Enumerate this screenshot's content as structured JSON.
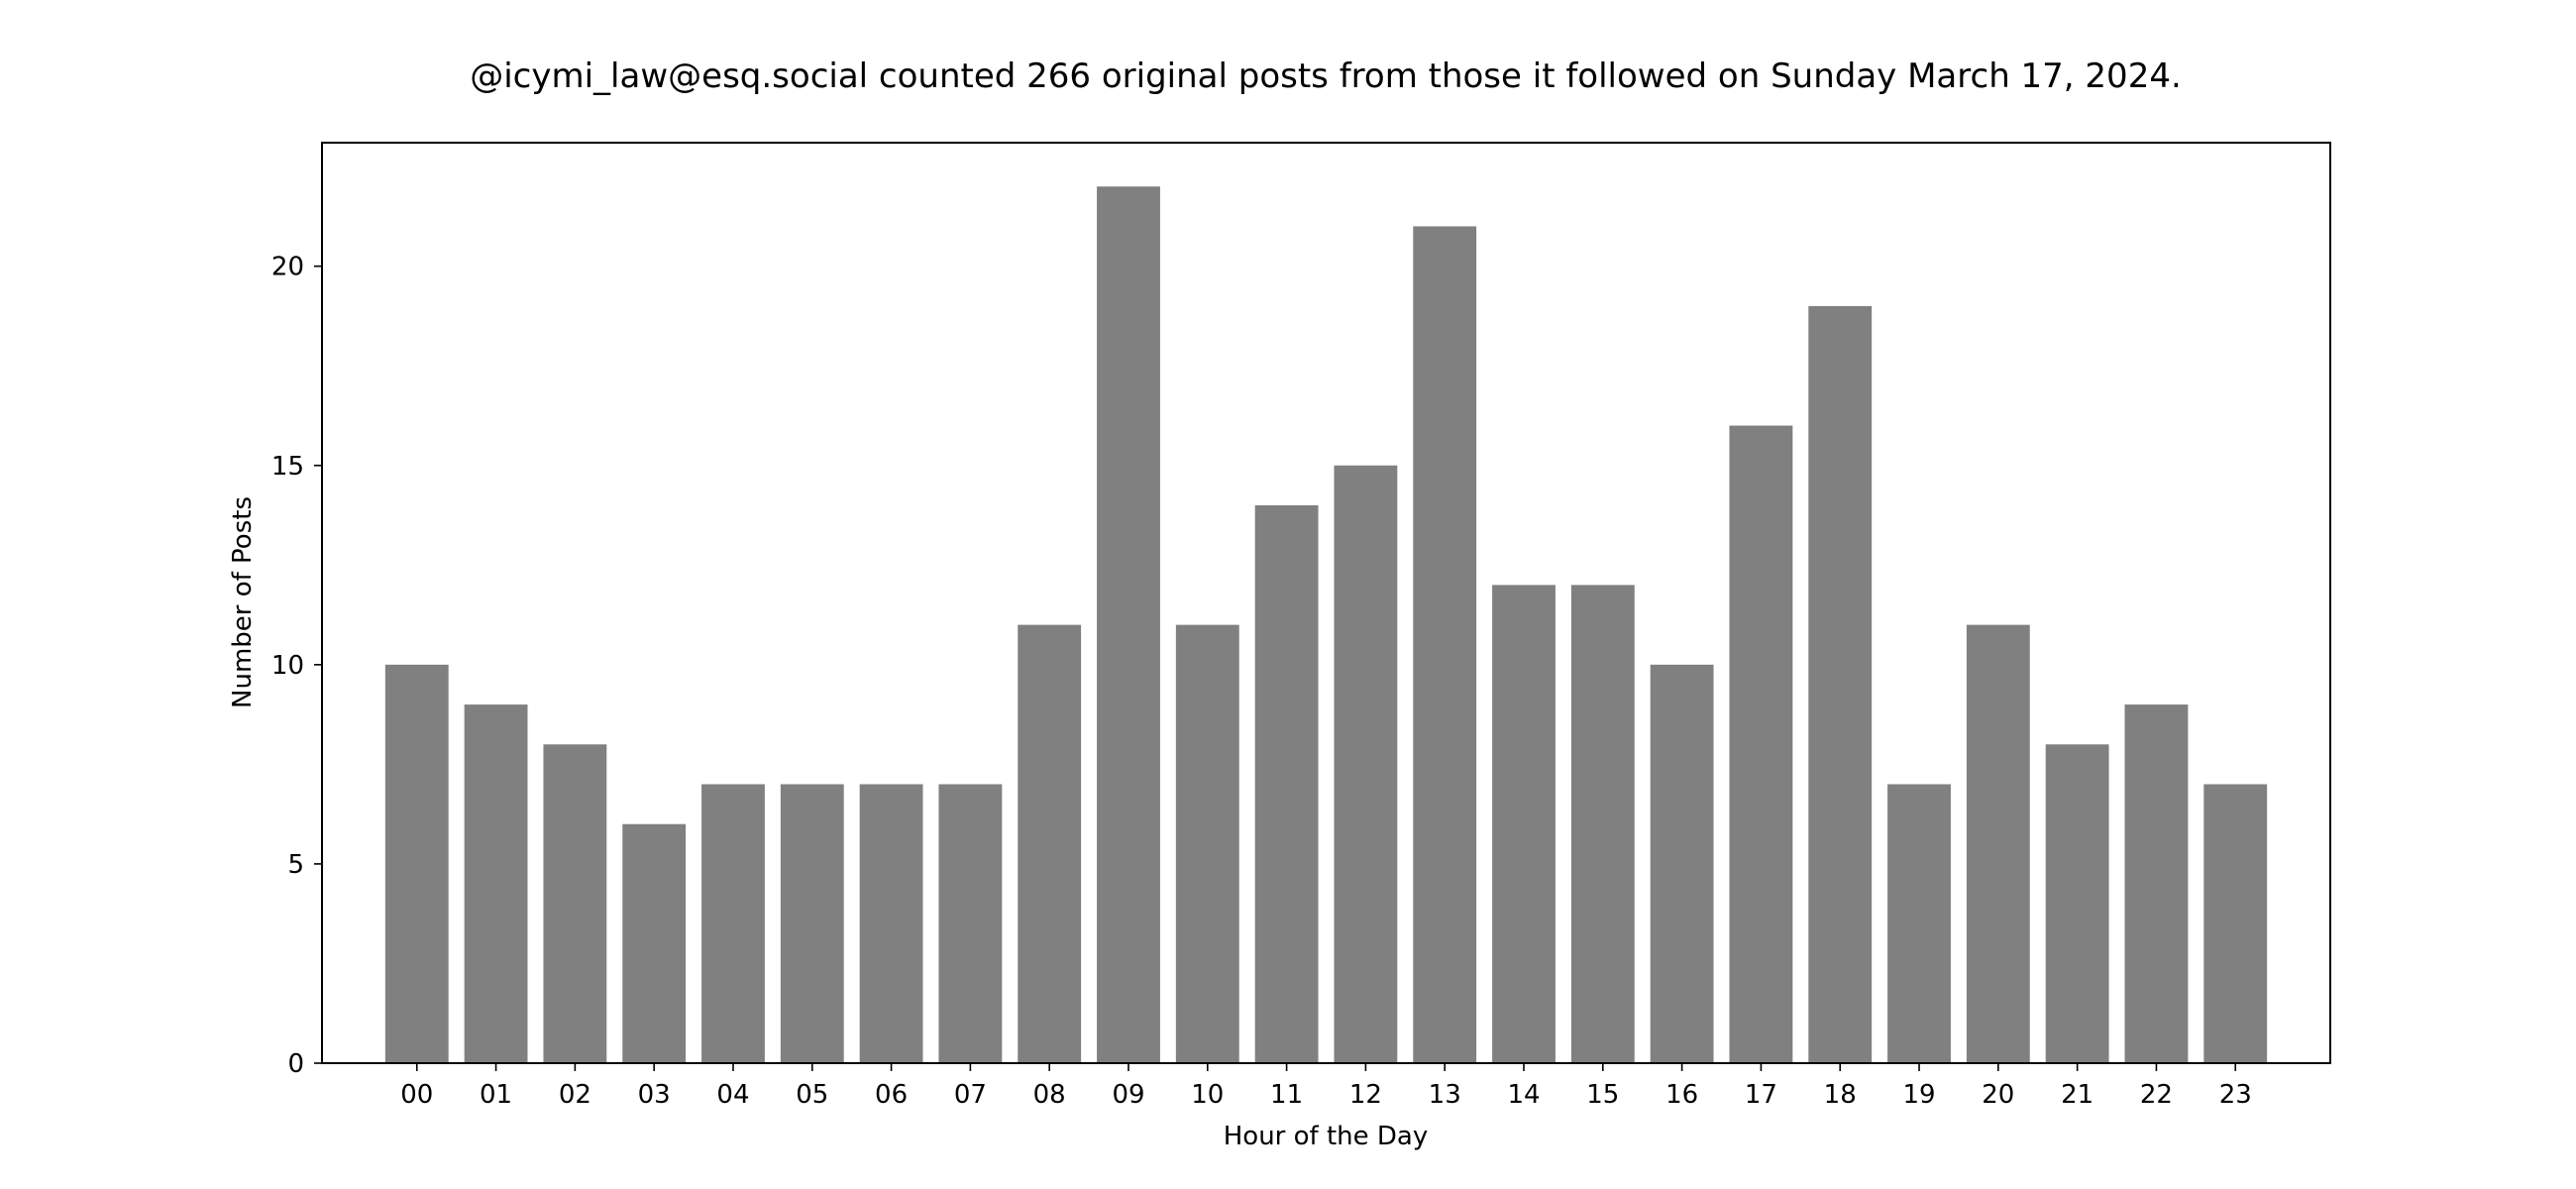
{
  "chart_data": {
    "type": "bar",
    "title": "@icymi_law@esq.social counted 266 original posts from those it followed on Sunday March 17, 2024.",
    "xlabel": "Hour of the Day",
    "ylabel": "Number of Posts",
    "categories": [
      "00",
      "01",
      "02",
      "03",
      "04",
      "05",
      "06",
      "07",
      "08",
      "09",
      "10",
      "11",
      "12",
      "13",
      "14",
      "15",
      "16",
      "17",
      "18",
      "19",
      "20",
      "21",
      "22",
      "23"
    ],
    "values": [
      10,
      9,
      8,
      6,
      7,
      7,
      7,
      7,
      11,
      22,
      11,
      14,
      15,
      21,
      12,
      12,
      10,
      16,
      19,
      7,
      11,
      8,
      9,
      7
    ],
    "yticks": [
      0,
      5,
      10,
      15,
      20
    ],
    "ylim": [
      0,
      23.1
    ],
    "grid": false,
    "bar_color": "#808080"
  }
}
